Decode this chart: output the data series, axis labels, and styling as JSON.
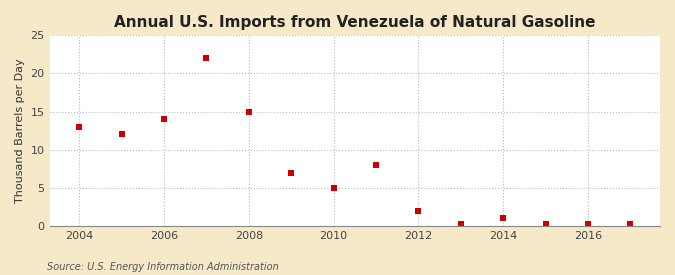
{
  "title": "Annual U.S. Imports from Venezuela of Natural Gasoline",
  "ylabel": "Thousand Barrels per Day",
  "source": "Source: U.S. Energy Information Administration",
  "background_color": "#f5e9c8",
  "plot_background_color": "#ffffff",
  "marker_color": "#cc0000",
  "marker": "s",
  "marker_size": 4,
  "years": [
    2004,
    2005,
    2006,
    2007,
    2008,
    2009,
    2010,
    2011,
    2012,
    2013,
    2014,
    2015,
    2016,
    2017
  ],
  "values": [
    13.0,
    12.0,
    14.0,
    22.0,
    15.0,
    7.0,
    5.0,
    8.0,
    2.0,
    0.2,
    1.0,
    0.2,
    0.2,
    0.2
  ],
  "xlim": [
    2003.3,
    2017.7
  ],
  "ylim": [
    0,
    25
  ],
  "yticks": [
    0,
    5,
    10,
    15,
    20,
    25
  ],
  "xticks": [
    2004,
    2006,
    2008,
    2010,
    2012,
    2014,
    2016
  ],
  "grid_color": "#bbbbbb",
  "grid_linestyle": ":",
  "title_fontsize": 11,
  "label_fontsize": 8,
  "tick_fontsize": 8,
  "source_fontsize": 7
}
